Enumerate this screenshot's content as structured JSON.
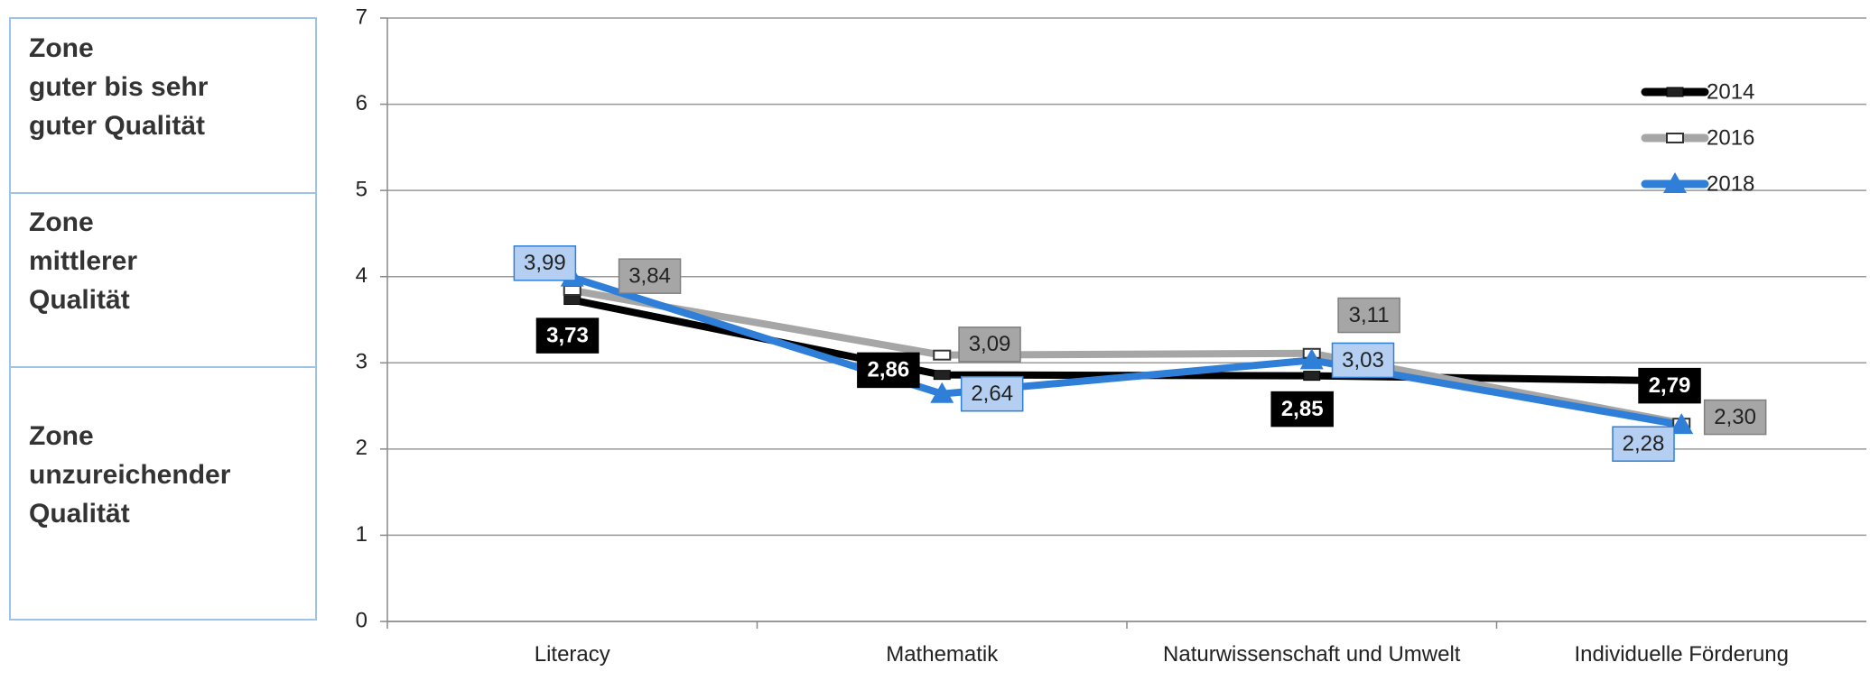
{
  "chart_data": {
    "type": "line",
    "annotations": [
      [
        "Zone",
        "guter bis sehr",
        "guter Qualität"
      ],
      [
        "Zone",
        "mittlerer",
        "Qualität"
      ],
      [
        "Zone",
        "unzureichender",
        "Qualität"
      ]
    ],
    "categories": [
      "Literacy",
      "Mathematik",
      "Naturwissenschaft und Umwelt",
      "Individuelle Förderung"
    ],
    "series": [
      {
        "name": "2014",
        "color": "#000000",
        "values": [
          3.73,
          2.86,
          2.85,
          2.79
        ],
        "value_labels": [
          "3,73",
          "2,86",
          "2,85",
          "2,79"
        ]
      },
      {
        "name": "2016",
        "color": "#a6a6a6",
        "values": [
          3.84,
          3.09,
          3.11,
          2.3
        ],
        "value_labels": [
          "3,84",
          "3,09",
          "3,11",
          "2,30"
        ]
      },
      {
        "name": "2018",
        "color": "#2f7fd8",
        "values": [
          3.99,
          2.64,
          3.03,
          2.28
        ],
        "value_labels": [
          "3,99",
          "2,64",
          "3,03",
          "2,28"
        ]
      }
    ],
    "ylim": [
      0,
      7
    ],
    "yticks": [
      0,
      1,
      2,
      3,
      4,
      5,
      6,
      7
    ],
    "grid": true,
    "legend": "upper right"
  }
}
